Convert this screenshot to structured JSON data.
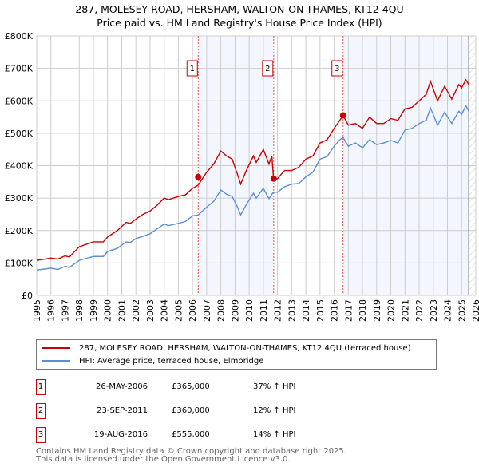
{
  "chart_data": {
    "type": "line",
    "title": "287, MOLESEY ROAD, HERSHAM, WALTON-ON-THAMES, KT12 4QU",
    "subtitle": "Price paid vs. HM Land Registry's House Price Index (HPI)",
    "xlim": [
      1995,
      2026
    ],
    "ylim": [
      0,
      800000
    ],
    "grid": true,
    "y_ticks": [
      {
        "v": 0,
        "label": "£0"
      },
      {
        "v": 100000,
        "label": "£100K"
      },
      {
        "v": 200000,
        "label": "£200K"
      },
      {
        "v": 300000,
        "label": "£300K"
      },
      {
        "v": 400000,
        "label": "£400K"
      },
      {
        "v": 500000,
        "label": "£500K"
      },
      {
        "v": 600000,
        "label": "£600K"
      },
      {
        "v": 700000,
        "label": "£700K"
      },
      {
        "v": 800000,
        "label": "£800K"
      }
    ],
    "x_ticks": [
      "1995",
      "1996",
      "1997",
      "1998",
      "1999",
      "2000",
      "2001",
      "2002",
      "2003",
      "2004",
      "2005",
      "2006",
      "2007",
      "2008",
      "2009",
      "2010",
      "2011",
      "2012",
      "2013",
      "2014",
      "2015",
      "2016",
      "2017",
      "2018",
      "2019",
      "2020",
      "2021",
      "2022",
      "2023",
      "2024",
      "2025",
      "2026"
    ],
    "series": [
      {
        "name": "287, MOLESEY ROAD, HERSHAM, WALTON-ON-THAMES, KT12 4QU (terraced house)",
        "color": "#cc0000",
        "x": [
          1995,
          1996,
          1996.5,
          1997,
          1997.3,
          1998,
          1999,
          1999.7,
          2000,
          2000.7,
          2001.3,
          2001.6,
          2002,
          2002.5,
          2003,
          2003.5,
          2004,
          2004.3,
          2005,
          2005.5,
          2006,
          2006.4,
          2007,
          2007.5,
          2008,
          2008.4,
          2008.8,
          2009.2,
          2009.4,
          2009.8,
          2010.3,
          2010.5,
          2011,
          2011.4,
          2011.6,
          2011.72,
          2012,
          2012.5,
          2013,
          2013.5,
          2014,
          2014.5,
          2015,
          2015.5,
          2016,
          2016.4,
          2016.63,
          2017,
          2017.5,
          2018,
          2018.5,
          2019,
          2019.5,
          2020,
          2020.5,
          2021,
          2021.5,
          2022,
          2022.5,
          2022.8,
          2023.3,
          2023.8,
          2024.3,
          2024.8,
          2025,
          2025.3,
          2025.5
        ],
        "y": [
          108000,
          115000,
          112000,
          122000,
          118000,
          150000,
          165000,
          165000,
          180000,
          200000,
          225000,
          222000,
          235000,
          250000,
          260000,
          278000,
          300000,
          295000,
          305000,
          310000,
          330000,
          340000,
          380000,
          405000,
          445000,
          430000,
          420000,
          370000,
          343000,
          385000,
          430000,
          410000,
          450000,
          405000,
          430000,
          360000,
          360000,
          385000,
          385000,
          395000,
          420000,
          430000,
          470000,
          480000,
          515000,
          540000,
          555000,
          525000,
          530000,
          515000,
          550000,
          530000,
          530000,
          545000,
          540000,
          575000,
          580000,
          600000,
          620000,
          660000,
          600000,
          645000,
          605000,
          650000,
          640000,
          665000,
          650000
        ]
      },
      {
        "name": "HPI: Average price, terraced house, Elmbridge",
        "color": "#5b8fd4",
        "x": [
          1995,
          1996,
          1996.5,
          1997,
          1997.3,
          1998,
          1999,
          1999.7,
          2000,
          2000.7,
          2001.3,
          2001.6,
          2002,
          2002.5,
          2003,
          2003.5,
          2004,
          2004.3,
          2005,
          2005.5,
          2006,
          2006.4,
          2007,
          2007.5,
          2008,
          2008.4,
          2008.8,
          2009.2,
          2009.4,
          2009.8,
          2010.3,
          2010.5,
          2011,
          2011.4,
          2011.7,
          2012,
          2012.5,
          2013,
          2013.5,
          2014,
          2014.5,
          2015,
          2015.5,
          2016,
          2016.4,
          2016.63,
          2017,
          2017.5,
          2018,
          2018.5,
          2019,
          2019.5,
          2020,
          2020.5,
          2021,
          2021.5,
          2022,
          2022.5,
          2022.8,
          2023.3,
          2023.8,
          2024.3,
          2024.8,
          2025,
          2025.3,
          2025.5
        ],
        "y": [
          78000,
          84000,
          80000,
          90000,
          86000,
          108000,
          120000,
          120000,
          135000,
          145000,
          165000,
          163000,
          175000,
          182000,
          190000,
          205000,
          220000,
          215000,
          222000,
          228000,
          245000,
          248000,
          272000,
          290000,
          325000,
          312000,
          305000,
          270000,
          248000,
          280000,
          315000,
          300000,
          330000,
          298000,
          318000,
          318000,
          335000,
          343000,
          345000,
          365000,
          380000,
          420000,
          428000,
          460000,
          480000,
          487000,
          460000,
          470000,
          455000,
          480000,
          465000,
          470000,
          478000,
          470000,
          510000,
          515000,
          530000,
          540000,
          578000,
          525000,
          565000,
          530000,
          568000,
          558000,
          585000,
          568000
        ]
      }
    ],
    "sales": [
      {
        "n": "1",
        "x": 2006.4,
        "y": 365000
      },
      {
        "n": "2",
        "x": 2011.73,
        "y": 360000
      },
      {
        "n": "3",
        "x": 2016.63,
        "y": 555000
      }
    ],
    "forecast_start": 2025.5
  },
  "legend": {
    "items": [
      "287, MOLESEY ROAD, HERSHAM, WALTON-ON-THAMES, KT12 4QU (terraced house)",
      "HPI: Average price, terraced house, Elmbridge"
    ]
  },
  "table": [
    {
      "n": "1",
      "date": "26-MAY-2006",
      "price": "£365,000",
      "pct": "37% ↑ HPI"
    },
    {
      "n": "2",
      "date": "23-SEP-2011",
      "price": "£360,000",
      "pct": "12% ↑ HPI"
    },
    {
      "n": "3",
      "date": "19-AUG-2016",
      "price": "£555,000",
      "pct": "14% ↑ HPI"
    }
  ],
  "footer": [
    "Contains HM Land Registry data © Crown copyright and database right 2025.",
    "This data is licensed under the Open Government Licence v3.0."
  ]
}
